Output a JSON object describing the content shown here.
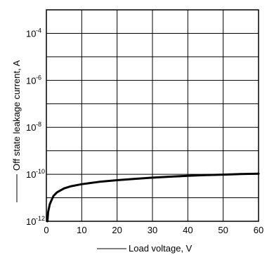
{
  "chart_data": {
    "type": "line",
    "title": "",
    "xlabel": "Load voltage, V",
    "ylabel": "Off state leakage current, A",
    "x_scale": "linear",
    "y_scale": "log",
    "xlim": [
      0,
      60
    ],
    "ylim": [
      1e-12,
      0.001
    ],
    "grid": true,
    "legend": "none",
    "x_ticks": [
      0,
      10,
      20,
      30,
      40,
      50,
      60
    ],
    "x_tick_labels": [
      "0",
      "10",
      "20",
      "30",
      "40",
      "50",
      "60"
    ],
    "y_ticks": [
      {
        "value": 1e-12,
        "base": "10",
        "exp": "-12"
      },
      {
        "value": 1e-10,
        "base": "10",
        "exp": "-10"
      },
      {
        "value": 1e-08,
        "base": "10",
        "exp": "-8"
      },
      {
        "value": 1e-06,
        "base": "10",
        "exp": "-6"
      },
      {
        "value": 0.0001,
        "base": "10",
        "exp": "-4"
      }
    ],
    "series": [
      {
        "color": "#000000",
        "x": [
          0.3,
          0.5,
          1,
          2,
          3,
          5,
          7,
          10,
          15,
          20,
          25,
          30,
          35,
          40,
          45,
          50,
          55,
          60
        ],
        "y": [
          1e-12,
          2.5e-12,
          5.5e-12,
          1.2e-11,
          1.7e-11,
          2.5e-11,
          3.1e-11,
          3.8e-11,
          4.8e-11,
          5.6e-11,
          6.4e-11,
          7.2e-11,
          7.9e-11,
          8.6e-11,
          9.2e-11,
          9.7e-11,
          1.02e-10,
          1.06e-10
        ]
      }
    ]
  }
}
